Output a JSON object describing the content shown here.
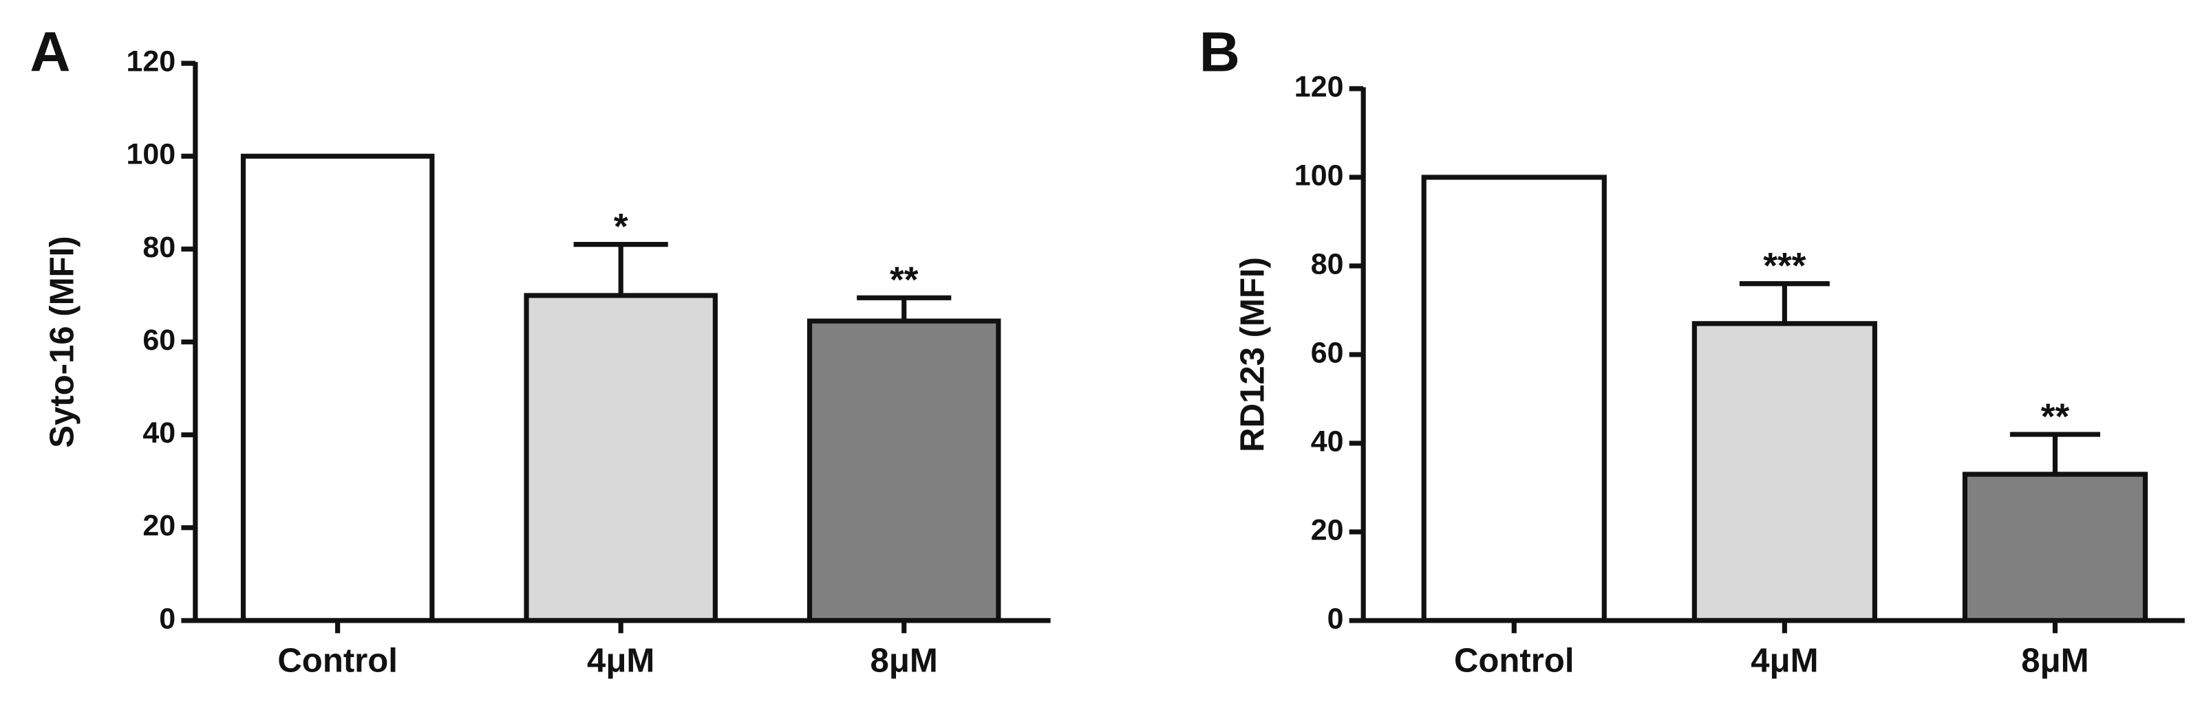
{
  "chart_data": [
    {
      "type": "bar",
      "panel_label": "A",
      "ylabel": "Syto-16 (MFI)",
      "categories": [
        "Control",
        "4μM",
        "8μM"
      ],
      "values": [
        100,
        70,
        64.5
      ],
      "errors": [
        null,
        11,
        5
      ],
      "significance": [
        null,
        "*",
        "**"
      ],
      "colors": [
        "#ffffff",
        "#d9d9d9",
        "#808080"
      ],
      "ylim": [
        0,
        120
      ],
      "yticks": [
        0,
        20,
        40,
        60,
        80,
        100,
        120
      ]
    },
    {
      "type": "bar",
      "panel_label": "B",
      "ylabel": "RD123 (MFI)",
      "categories": [
        "Control",
        "4μM",
        "8μM"
      ],
      "values": [
        100,
        67,
        33
      ],
      "errors": [
        null,
        9,
        9
      ],
      "significance": [
        null,
        "***",
        "**"
      ],
      "colors": [
        "#ffffff",
        "#d9d9d9",
        "#808080"
      ],
      "ylim": [
        0,
        120
      ],
      "yticks": [
        0,
        20,
        40,
        60,
        80,
        100,
        120
      ]
    }
  ]
}
